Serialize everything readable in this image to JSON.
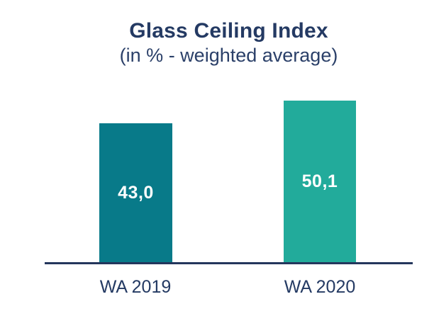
{
  "page": {
    "background_color": "#FFFFFF"
  },
  "chart_data": {
    "type": "bar",
    "title": "Glass Ceiling Index",
    "subtitle": "(in % - weighted average)",
    "categories": [
      "WA 2019",
      "WA 2020"
    ],
    "values": [
      43.0,
      50.1
    ],
    "value_labels": [
      "43,0",
      "50,1"
    ],
    "unit": "%",
    "series_name": "Glass Ceiling Index (weighted average %)",
    "bar_colors": [
      "#087A89",
      "#22AB9B"
    ],
    "value_label_color": "#FFFFFF",
    "text_color": "#243A63",
    "axis_line_color": "#24365C",
    "ylim": [
      0,
      52
    ],
    "grid": false,
    "legend": false,
    "y_axis_visible": false,
    "x_axis_baseline_visible": true,
    "value_labels_position": "center-inside-bar"
  }
}
